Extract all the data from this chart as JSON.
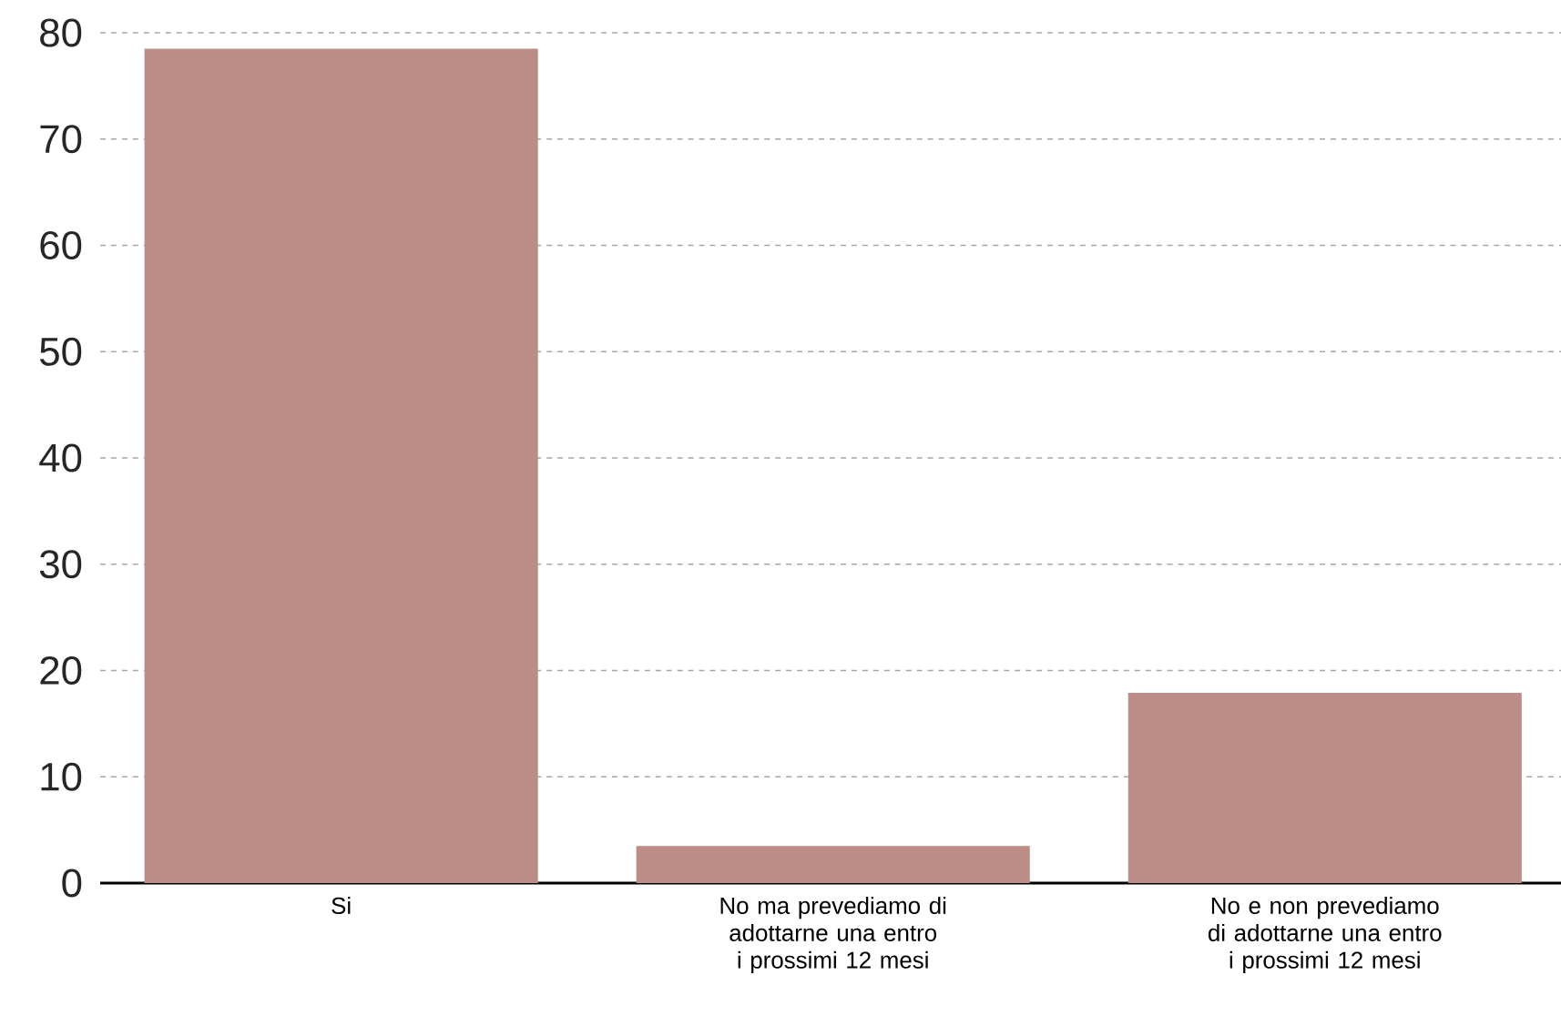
{
  "chart_data": {
    "type": "bar",
    "categories": [
      "Si",
      "No ma prevediamo di adottarne una entro i prossimi 12 mesi",
      "No e non prevediamo di adottarne una entro i prossimi 12 mesi"
    ],
    "values": [
      78.5,
      3.5,
      17.9
    ],
    "color": "#bc8c86",
    "ylim": [
      0,
      80
    ],
    "yticks": [
      0,
      10,
      20,
      30,
      40,
      50,
      60,
      70,
      80
    ],
    "grid": "y"
  }
}
